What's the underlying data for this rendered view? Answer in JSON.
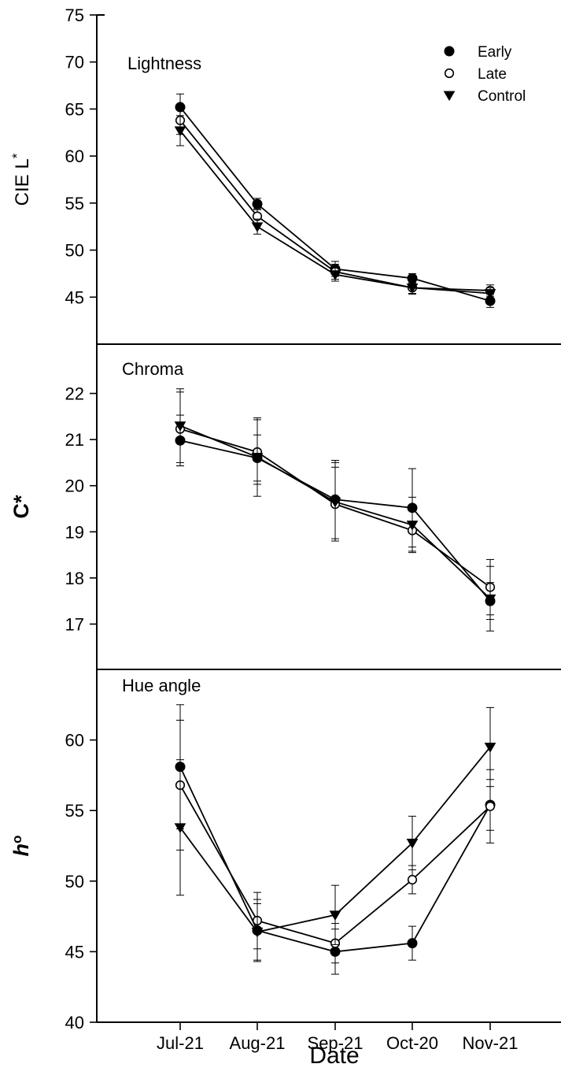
{
  "chart_data": {
    "type": "line",
    "categories": [
      "Jul-21",
      "Aug-21",
      "Sep-21",
      "Oct-20",
      "Nov-21"
    ],
    "xlabel": "Date",
    "legend": {
      "placement": "top-right",
      "entries": [
        {
          "name": "Early",
          "marker": "filled-circle"
        },
        {
          "name": "Late",
          "marker": "open-circle"
        },
        {
          "name": "Control",
          "marker": "filled-triangle-down"
        }
      ]
    },
    "panels": [
      {
        "title": "Lightness",
        "ylabel": "CIE L",
        "ylabel_sup": "*",
        "ylabel_style": "normal",
        "ylim": [
          40,
          75
        ],
        "yticks": [
          45,
          50,
          55,
          60,
          65,
          70,
          75
        ],
        "series": [
          {
            "name": "Early",
            "values": [
              65.2,
              54.9,
              48.0,
              47.0,
              44.6
            ],
            "errors": [
              1.4,
              0.6,
              0.8,
              0.5,
              0.7
            ]
          },
          {
            "name": "Late",
            "values": [
              63.8,
              53.6,
              47.7,
              46.0,
              45.7
            ],
            "errors": [
              1.5,
              0.8,
              0.8,
              0.7,
              0.6
            ]
          },
          {
            "name": "Control",
            "values": [
              62.7,
              52.5,
              47.4,
              46.0,
              45.4
            ],
            "errors": [
              1.6,
              0.8,
              0.7,
              0.6,
              0.6
            ]
          }
        ]
      },
      {
        "title": "Chroma",
        "ylabel": "C*",
        "ylabel_sup": "",
        "ylabel_style": "bold",
        "ylim": [
          16,
          23
        ],
        "yticks": [
          17,
          18,
          19,
          20,
          21,
          22
        ],
        "series": [
          {
            "name": "Early",
            "values": [
              20.98,
              20.6,
              19.7,
              19.52,
              17.5
            ],
            "errors": [
              0.55,
              0.5,
              0.85,
              0.85,
              0.4
            ]
          },
          {
            "name": "Late",
            "values": [
              21.23,
              20.73,
              19.6,
              19.03,
              17.8
            ],
            "errors": [
              0.8,
              0.7,
              0.8,
              0.45,
              0.6
            ]
          },
          {
            "name": "Control",
            "values": [
              21.3,
              20.62,
              19.65,
              19.15,
              17.55
            ],
            "errors": [
              0.8,
              0.85,
              0.85,
              0.6,
              0.7
            ]
          }
        ]
      },
      {
        "title": "Hue angle",
        "ylabel": "h",
        "ylabel_sup": "o",
        "ylabel_style": "italic",
        "ylim": [
          40,
          65
        ],
        "yticks": [
          40,
          45,
          50,
          55,
          60
        ],
        "series": [
          {
            "name": "Early",
            "values": [
              58.1,
              46.5,
              45.0,
              45.6,
              55.4
            ],
            "errors": [
              4.4,
              2.2,
              1.6,
              1.2,
              1.8
            ]
          },
          {
            "name": "Late",
            "values": [
              56.8,
              47.2,
              45.6,
              50.1,
              55.3
            ],
            "errors": [
              4.6,
              2.0,
              1.4,
              1.0,
              2.6
            ]
          },
          {
            "name": "Control",
            "values": [
              53.8,
              46.4,
              47.6,
              52.7,
              59.5
            ],
            "errors": [
              4.8,
              2.0,
              2.1,
              1.9,
              2.8
            ]
          }
        ]
      }
    ]
  },
  "colors": {
    "series": "#000000",
    "open_fill": "#ffffff",
    "background": "#ffffff"
  }
}
